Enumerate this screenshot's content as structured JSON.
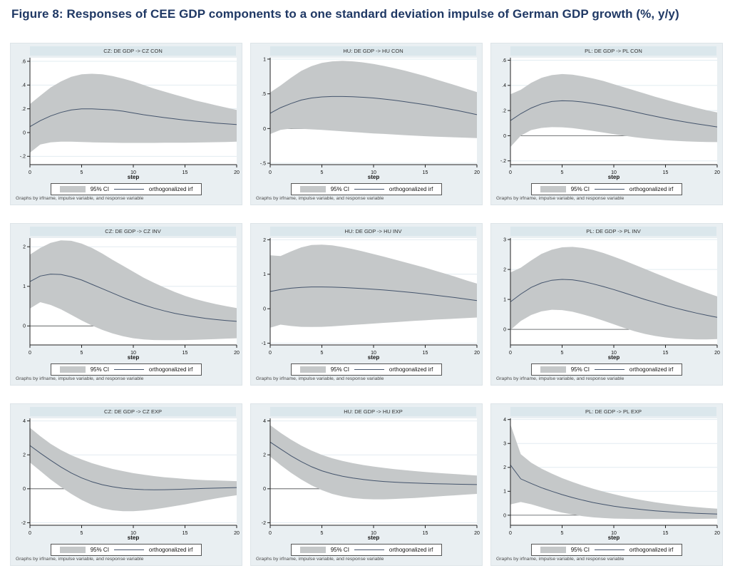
{
  "figure_title": "Figure 8: Responses of CEE GDP components to a one standard deviation impulse of German GDP growth (%, y/y)",
  "colors": {
    "band": "#c5c8c9",
    "irf_line": "#44546c",
    "zero_line": "#555555",
    "axis": "#222222",
    "gridline": "#e2ecf1",
    "panel_bg": "#e9eff2",
    "strip_bg": "#dbe7ec",
    "title_color": "#1f3864"
  },
  "chart_data": {
    "type": "line",
    "xlabel": "step",
    "x": [
      0,
      1,
      2,
      3,
      4,
      5,
      6,
      7,
      8,
      9,
      10,
      11,
      12,
      13,
      14,
      15,
      16,
      17,
      18,
      19,
      20
    ],
    "xticks": [
      0,
      5,
      10,
      15,
      20
    ],
    "xtick_labels": [
      "0",
      "5",
      "10",
      "15",
      "20"
    ],
    "legend_ci": "95% CI",
    "legend_irf": "orthogonalized irf",
    "legend_position": "bottom",
    "grid": true,
    "note": "Graphs by irfname, impulse variable, and response variable",
    "panels": [
      {
        "id": "cz-con",
        "title": "CZ: DE GDP -> CZ CON",
        "ylim": [
          -0.27,
          0.63
        ],
        "yticks": [
          -0.2,
          0,
          0.2,
          0.4,
          0.6
        ],
        "ytick_labels": [
          "-.2",
          "0",
          ".2",
          ".4",
          ".6"
        ],
        "irf": [
          0.05,
          0.1,
          0.14,
          0.17,
          0.19,
          0.2,
          0.2,
          0.195,
          0.19,
          0.18,
          0.165,
          0.15,
          0.138,
          0.126,
          0.115,
          0.105,
          0.096,
          0.088,
          0.08,
          0.073,
          0.067
        ],
        "ci_upper": [
          0.24,
          0.31,
          0.38,
          0.43,
          0.47,
          0.49,
          0.495,
          0.49,
          0.475,
          0.455,
          0.43,
          0.4,
          0.37,
          0.345,
          0.32,
          0.295,
          0.27,
          0.25,
          0.23,
          0.21,
          0.19
        ],
        "ci_lower": [
          -0.17,
          -0.1,
          -0.082,
          -0.077,
          -0.077,
          -0.08,
          -0.082,
          -0.084,
          -0.086,
          -0.087,
          -0.087,
          -0.087,
          -0.087,
          -0.086,
          -0.086,
          -0.085,
          -0.084,
          -0.083,
          -0.081,
          -0.079,
          -0.077
        ]
      },
      {
        "id": "hu-con",
        "title": "HU: DE GDP -> HU CON",
        "ylim": [
          -0.52,
          1.02
        ],
        "yticks": [
          -0.5,
          0,
          0.5,
          1
        ],
        "ytick_labels": [
          "-.5",
          "0",
          ".5",
          "1"
        ],
        "irf": [
          0.22,
          0.3,
          0.36,
          0.41,
          0.44,
          0.455,
          0.462,
          0.462,
          0.458,
          0.45,
          0.44,
          0.425,
          0.408,
          0.388,
          0.366,
          0.343,
          0.318,
          0.29,
          0.262,
          0.232,
          0.2
        ],
        "ci_upper": [
          0.52,
          0.62,
          0.73,
          0.83,
          0.9,
          0.945,
          0.968,
          0.975,
          0.968,
          0.952,
          0.93,
          0.902,
          0.87,
          0.835,
          0.795,
          0.755,
          0.71,
          0.665,
          0.62,
          0.572,
          0.525
        ],
        "ci_lower": [
          -0.08,
          -0.02,
          0.0,
          -0.005,
          -0.012,
          -0.02,
          -0.03,
          -0.04,
          -0.05,
          -0.06,
          -0.07,
          -0.078,
          -0.087,
          -0.095,
          -0.103,
          -0.11,
          -0.117,
          -0.123,
          -0.128,
          -0.133,
          -0.138
        ]
      },
      {
        "id": "pl-con",
        "title": "PL: DE GDP -> PL CON",
        "ylim": [
          -0.23,
          0.62
        ],
        "yticks": [
          -0.2,
          0,
          0.2,
          0.4,
          0.6
        ],
        "ytick_labels": [
          "-.2",
          "0",
          ".2",
          ".4",
          ".6"
        ],
        "irf": [
          0.12,
          0.175,
          0.22,
          0.253,
          0.272,
          0.278,
          0.276,
          0.268,
          0.256,
          0.242,
          0.226,
          0.208,
          0.19,
          0.172,
          0.155,
          0.138,
          0.122,
          0.108,
          0.094,
          0.082,
          0.07
        ],
        "ci_upper": [
          0.33,
          0.365,
          0.42,
          0.46,
          0.482,
          0.49,
          0.485,
          0.472,
          0.455,
          0.435,
          0.41,
          0.385,
          0.36,
          0.335,
          0.31,
          0.287,
          0.264,
          0.243,
          0.222,
          0.202,
          0.185
        ],
        "ci_lower": [
          -0.09,
          0.0,
          0.045,
          0.062,
          0.068,
          0.067,
          0.06,
          0.05,
          0.038,
          0.025,
          0.012,
          0.0,
          -0.012,
          -0.021,
          -0.029,
          -0.036,
          -0.041,
          -0.045,
          -0.048,
          -0.05,
          -0.051
        ]
      },
      {
        "id": "cz-inv",
        "title": "CZ: DE GDP -> CZ INV",
        "ylim": [
          -0.48,
          2.22
        ],
        "yticks": [
          0,
          1,
          2
        ],
        "ytick_labels": [
          "0",
          "1",
          "2"
        ],
        "irf": [
          1.12,
          1.26,
          1.31,
          1.3,
          1.24,
          1.16,
          1.05,
          0.94,
          0.83,
          0.72,
          0.62,
          0.53,
          0.45,
          0.38,
          0.32,
          0.27,
          0.23,
          0.19,
          0.16,
          0.135,
          0.115
        ],
        "ci_upper": [
          1.8,
          1.97,
          2.1,
          2.16,
          2.15,
          2.08,
          1.97,
          1.83,
          1.67,
          1.52,
          1.37,
          1.22,
          1.09,
          0.97,
          0.86,
          0.76,
          0.68,
          0.61,
          0.55,
          0.5,
          0.45
        ],
        "ci_lower": [
          0.44,
          0.6,
          0.53,
          0.42,
          0.28,
          0.14,
          0.01,
          -0.1,
          -0.19,
          -0.26,
          -0.31,
          -0.34,
          -0.355,
          -0.36,
          -0.36,
          -0.355,
          -0.35,
          -0.34,
          -0.33,
          -0.32,
          -0.31
        ]
      },
      {
        "id": "hu-inv",
        "title": "HU: DE GDP -> HU INV",
        "ylim": [
          -1.05,
          2.05
        ],
        "yticks": [
          -1,
          0,
          1,
          2
        ],
        "ytick_labels": [
          "-1",
          "0",
          "1",
          "2"
        ],
        "irf": [
          0.5,
          0.555,
          0.595,
          0.62,
          0.632,
          0.633,
          0.627,
          0.616,
          0.602,
          0.585,
          0.565,
          0.543,
          0.518,
          0.49,
          0.46,
          0.428,
          0.393,
          0.356,
          0.318,
          0.278,
          0.238
        ],
        "ci_upper": [
          1.55,
          1.53,
          1.66,
          1.78,
          1.85,
          1.86,
          1.84,
          1.79,
          1.73,
          1.66,
          1.585,
          1.51,
          1.43,
          1.35,
          1.27,
          1.19,
          1.1,
          1.01,
          0.92,
          0.82,
          0.73
        ],
        "ci_lower": [
          -0.55,
          -0.46,
          -0.5,
          -0.525,
          -0.53,
          -0.525,
          -0.51,
          -0.49,
          -0.47,
          -0.45,
          -0.43,
          -0.41,
          -0.39,
          -0.37,
          -0.35,
          -0.335,
          -0.315,
          -0.3,
          -0.285,
          -0.27,
          -0.255
        ]
      },
      {
        "id": "pl-inv",
        "title": "PL: DE GDP -> PL INV",
        "ylim": [
          -0.52,
          3.05
        ],
        "yticks": [
          0,
          1,
          2,
          3
        ],
        "ytick_labels": [
          "0",
          "1",
          "2",
          "3"
        ],
        "irf": [
          0.92,
          1.18,
          1.4,
          1.55,
          1.64,
          1.67,
          1.655,
          1.6,
          1.52,
          1.43,
          1.33,
          1.22,
          1.11,
          1.0,
          0.9,
          0.8,
          0.71,
          0.625,
          0.545,
          0.47,
          0.4
        ],
        "ci_upper": [
          1.9,
          2.06,
          2.3,
          2.52,
          2.66,
          2.74,
          2.755,
          2.72,
          2.65,
          2.55,
          2.43,
          2.3,
          2.16,
          2.02,
          1.88,
          1.74,
          1.6,
          1.47,
          1.34,
          1.22,
          1.1
        ],
        "ci_lower": [
          -0.02,
          0.28,
          0.48,
          0.6,
          0.655,
          0.645,
          0.59,
          0.5,
          0.4,
          0.29,
          0.17,
          0.05,
          -0.06,
          -0.15,
          -0.22,
          -0.27,
          -0.305,
          -0.325,
          -0.335,
          -0.335,
          -0.325
        ]
      },
      {
        "id": "cz-exp",
        "title": "CZ: DE GDP -> CZ EXP",
        "ylim": [
          -2.15,
          4.15
        ],
        "yticks": [
          -2,
          0,
          2,
          4
        ],
        "ytick_labels": [
          "-2",
          "0",
          "2",
          "4"
        ],
        "irf": [
          2.55,
          2.1,
          1.68,
          1.28,
          0.93,
          0.64,
          0.41,
          0.24,
          0.12,
          0.03,
          -0.02,
          -0.05,
          -0.06,
          -0.055,
          -0.04,
          -0.02,
          0.0,
          0.02,
          0.04,
          0.055,
          0.07
        ],
        "ci_upper": [
          3.6,
          3.1,
          2.65,
          2.28,
          1.98,
          1.73,
          1.51,
          1.33,
          1.17,
          1.04,
          0.92,
          0.83,
          0.75,
          0.68,
          0.63,
          0.58,
          0.54,
          0.51,
          0.49,
          0.47,
          0.45
        ],
        "ci_lower": [
          1.55,
          1.05,
          0.55,
          0.1,
          -0.3,
          -0.66,
          -0.95,
          -1.15,
          -1.27,
          -1.32,
          -1.32,
          -1.28,
          -1.21,
          -1.12,
          -1.02,
          -0.92,
          -0.8,
          -0.68,
          -0.57,
          -0.47,
          -0.38
        ]
      },
      {
        "id": "hu-exp",
        "title": "HU: DE GDP -> HU EXP",
        "ylim": [
          -2.15,
          4.15
        ],
        "yticks": [
          -2,
          0,
          2,
          4
        ],
        "ytick_labels": [
          "-2",
          "0",
          "2",
          "4"
        ],
        "irf": [
          2.75,
          2.35,
          1.95,
          1.6,
          1.3,
          1.06,
          0.88,
          0.74,
          0.63,
          0.55,
          0.48,
          0.43,
          0.39,
          0.36,
          0.335,
          0.315,
          0.3,
          0.285,
          0.27,
          0.26,
          0.25
        ],
        "ci_upper": [
          3.75,
          3.3,
          2.9,
          2.55,
          2.25,
          2.0,
          1.8,
          1.64,
          1.51,
          1.4,
          1.31,
          1.23,
          1.16,
          1.1,
          1.04,
          0.99,
          0.94,
          0.9,
          0.86,
          0.82,
          0.78
        ],
        "ci_lower": [
          1.9,
          1.4,
          0.95,
          0.55,
          0.2,
          -0.08,
          -0.3,
          -0.45,
          -0.55,
          -0.6,
          -0.62,
          -0.62,
          -0.6,
          -0.57,
          -0.54,
          -0.5,
          -0.46,
          -0.42,
          -0.38,
          -0.34,
          -0.3
        ]
      },
      {
        "id": "pl-exp",
        "title": "PL: DE GDP -> PL EXP",
        "ylim": [
          -0.42,
          4.05
        ],
        "yticks": [
          0,
          1,
          2,
          3,
          4
        ],
        "ytick_labels": [
          "0",
          "1",
          "2",
          "3",
          "4"
        ],
        "irf": [
          2.1,
          1.52,
          1.33,
          1.15,
          1.0,
          0.86,
          0.74,
          0.63,
          0.53,
          0.45,
          0.38,
          0.32,
          0.27,
          0.225,
          0.185,
          0.152,
          0.125,
          0.102,
          0.082,
          0.066,
          0.052
        ],
        "ci_upper": [
          3.8,
          2.55,
          2.2,
          1.95,
          1.74,
          1.55,
          1.39,
          1.24,
          1.11,
          0.99,
          0.88,
          0.78,
          0.69,
          0.61,
          0.54,
          0.48,
          0.43,
          0.38,
          0.34,
          0.3,
          0.27
        ],
        "ci_lower": [
          0.45,
          0.55,
          0.46,
          0.33,
          0.21,
          0.11,
          0.03,
          -0.04,
          -0.09,
          -0.12,
          -0.14,
          -0.15,
          -0.157,
          -0.16,
          -0.162,
          -0.162,
          -0.16,
          -0.157,
          -0.153,
          -0.148,
          -0.143
        ]
      }
    ]
  }
}
